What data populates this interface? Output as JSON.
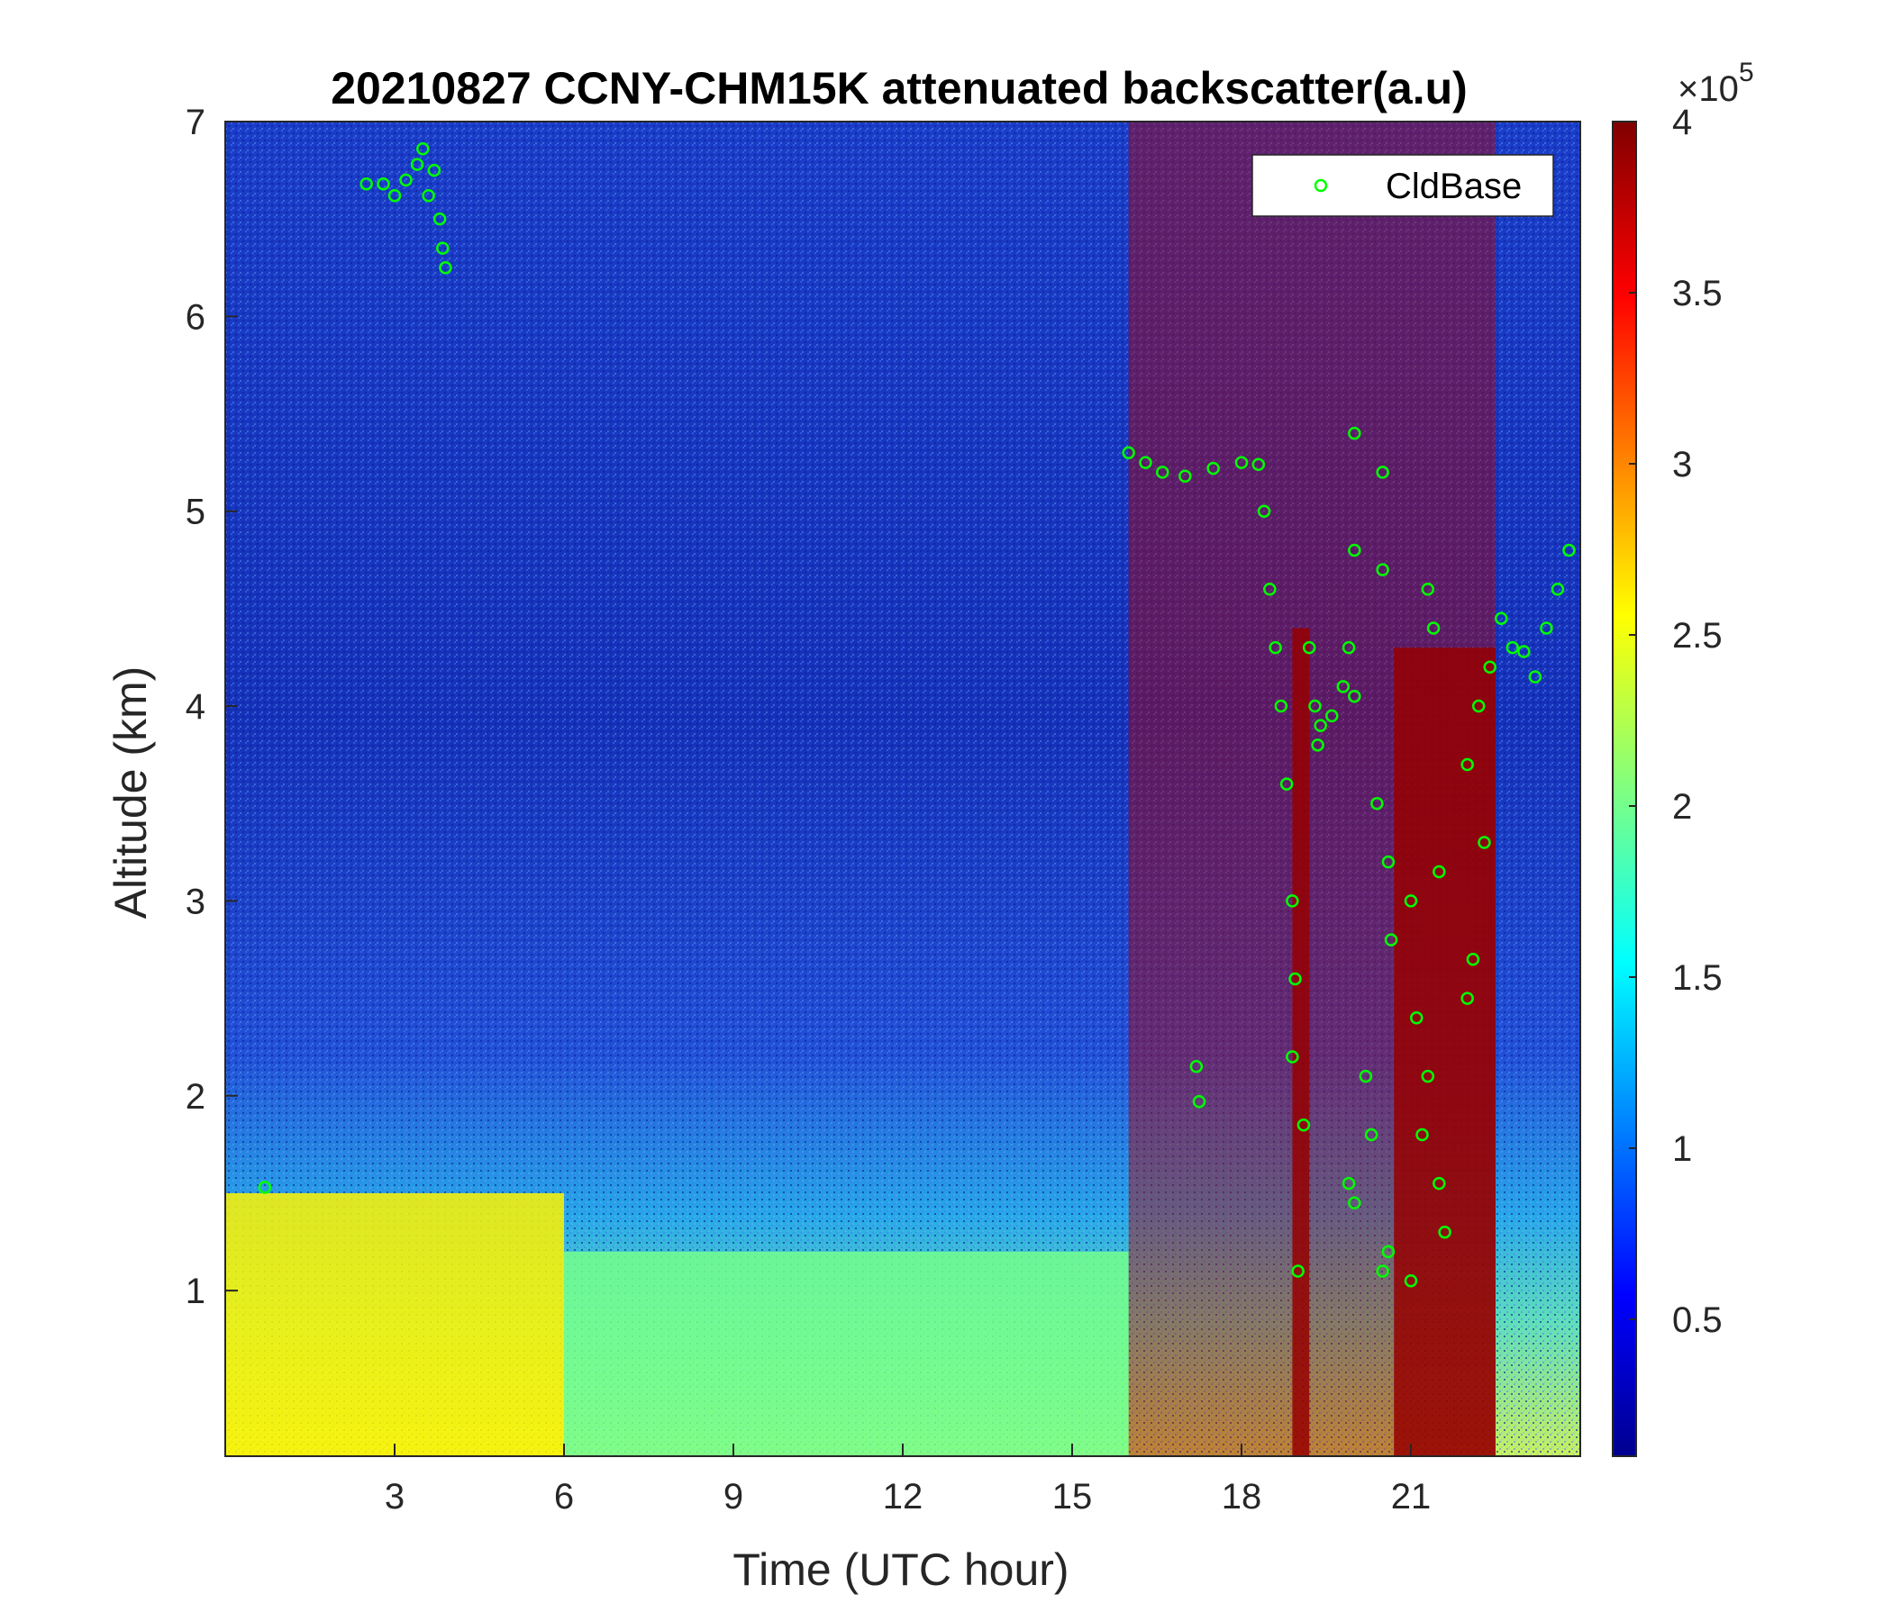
{
  "chart_data": {
    "type": "heatmap",
    "title": "20210827 CCNY-CHM15K attenuated backscatter(a.u)",
    "xlabel": "Time (UTC hour)",
    "ylabel": "Altitude (km)",
    "xlim": [
      0,
      24
    ],
    "ylim": [
      0.15,
      7
    ],
    "xticks": [
      3,
      6,
      9,
      12,
      15,
      18,
      21
    ],
    "xtick_labels": [
      "3",
      "6",
      "9",
      "12",
      "15",
      "18",
      "21"
    ],
    "yticks": [
      1,
      2,
      3,
      4,
      5,
      6,
      7
    ],
    "ytick_labels": [
      "1",
      "2",
      "3",
      "4",
      "5",
      "6",
      "7"
    ],
    "colormap": "jet",
    "colorbar": {
      "range": [
        10000,
        400000
      ],
      "ticks": [
        0.5,
        1,
        1.5,
        2,
        2.5,
        3,
        3.5,
        4
      ],
      "tick_labels": [
        "0.5",
        "1",
        "1.5",
        "2",
        "2.5",
        "3",
        "3.5",
        "4"
      ],
      "exponent_base": "×10",
      "exponent_power": "5"
    },
    "legend": {
      "position": "top-right",
      "entries": [
        {
          "name": "CldBase",
          "marker": "circle",
          "color": "#00ff00"
        }
      ]
    },
    "regions": [
      {
        "name": "aerosol-layer-night",
        "x": [
          0,
          6
        ],
        "y": [
          0.15,
          1.5
        ],
        "value": 2.6
      },
      {
        "name": "aerosol-layer-day",
        "x": [
          6,
          16
        ],
        "y": [
          0.15,
          1.2
        ],
        "value": 2.0
      },
      {
        "name": "cloud-column-1",
        "x": [
          18.9,
          19.2
        ],
        "y": [
          0.15,
          4.4
        ],
        "value": 4.0
      },
      {
        "name": "cloud-column-2",
        "x": [
          20.7,
          22.5
        ],
        "y": [
          0.15,
          4.3
        ],
        "value": 4.0
      },
      {
        "name": "high-signal-afternoon",
        "x": [
          16,
          22.5
        ],
        "y": [
          0.15,
          7
        ],
        "value": 3.8
      }
    ],
    "series": [
      {
        "name": "CldBase",
        "points": [
          [
            2.5,
            6.68
          ],
          [
            2.8,
            6.68
          ],
          [
            3.0,
            6.62
          ],
          [
            3.2,
            6.7
          ],
          [
            3.4,
            6.78
          ],
          [
            3.5,
            6.86
          ],
          [
            3.6,
            6.62
          ],
          [
            3.7,
            6.75
          ],
          [
            3.8,
            6.5
          ],
          [
            3.85,
            6.35
          ],
          [
            3.9,
            6.25
          ],
          [
            0.7,
            1.53
          ],
          [
            16.0,
            5.3
          ],
          [
            16.3,
            5.25
          ],
          [
            16.6,
            5.2
          ],
          [
            17.0,
            5.18
          ],
          [
            17.5,
            5.22
          ],
          [
            18.0,
            5.25
          ],
          [
            18.3,
            5.24
          ],
          [
            17.2,
            2.15
          ],
          [
            17.25,
            1.97
          ],
          [
            18.4,
            5.0
          ],
          [
            18.5,
            4.6
          ],
          [
            18.6,
            4.3
          ],
          [
            18.7,
            4.0
          ],
          [
            18.8,
            3.6
          ],
          [
            18.9,
            3.0
          ],
          [
            18.95,
            2.6
          ],
          [
            18.9,
            2.2
          ],
          [
            19.2,
            4.3
          ],
          [
            19.3,
            4.0
          ],
          [
            19.35,
            3.8
          ],
          [
            19.1,
            1.85
          ],
          [
            19.0,
            1.1
          ],
          [
            19.4,
            3.9
          ],
          [
            19.6,
            3.95
          ],
          [
            19.8,
            4.1
          ],
          [
            19.9,
            4.3
          ],
          [
            20.0,
            4.8
          ],
          [
            20.0,
            5.4
          ],
          [
            20.0,
            4.05
          ],
          [
            19.9,
            1.55
          ],
          [
            20.0,
            1.45
          ],
          [
            20.2,
            2.1
          ],
          [
            20.3,
            1.8
          ],
          [
            20.5,
            4.7
          ],
          [
            20.5,
            5.2
          ],
          [
            20.4,
            3.5
          ],
          [
            20.6,
            3.2
          ],
          [
            20.65,
            2.8
          ],
          [
            20.5,
            1.1
          ],
          [
            20.6,
            1.2
          ],
          [
            21.0,
            3.0
          ],
          [
            21.1,
            2.4
          ],
          [
            21.2,
            1.8
          ],
          [
            21.3,
            2.1
          ],
          [
            21.4,
            4.4
          ],
          [
            21.3,
            4.6
          ],
          [
            21.5,
            3.15
          ],
          [
            21.0,
            1.05
          ],
          [
            21.5,
            1.55
          ],
          [
            21.6,
            1.3
          ],
          [
            22.0,
            3.7
          ],
          [
            22.2,
            4.0
          ],
          [
            22.4,
            4.2
          ],
          [
            22.3,
            3.3
          ],
          [
            22.0,
            2.5
          ],
          [
            22.1,
            2.7
          ],
          [
            22.6,
            4.45
          ],
          [
            22.8,
            4.3
          ],
          [
            23.0,
            4.28
          ],
          [
            23.2,
            4.15
          ],
          [
            23.4,
            4.4
          ],
          [
            23.6,
            4.6
          ],
          [
            23.8,
            4.8
          ]
        ]
      }
    ]
  }
}
